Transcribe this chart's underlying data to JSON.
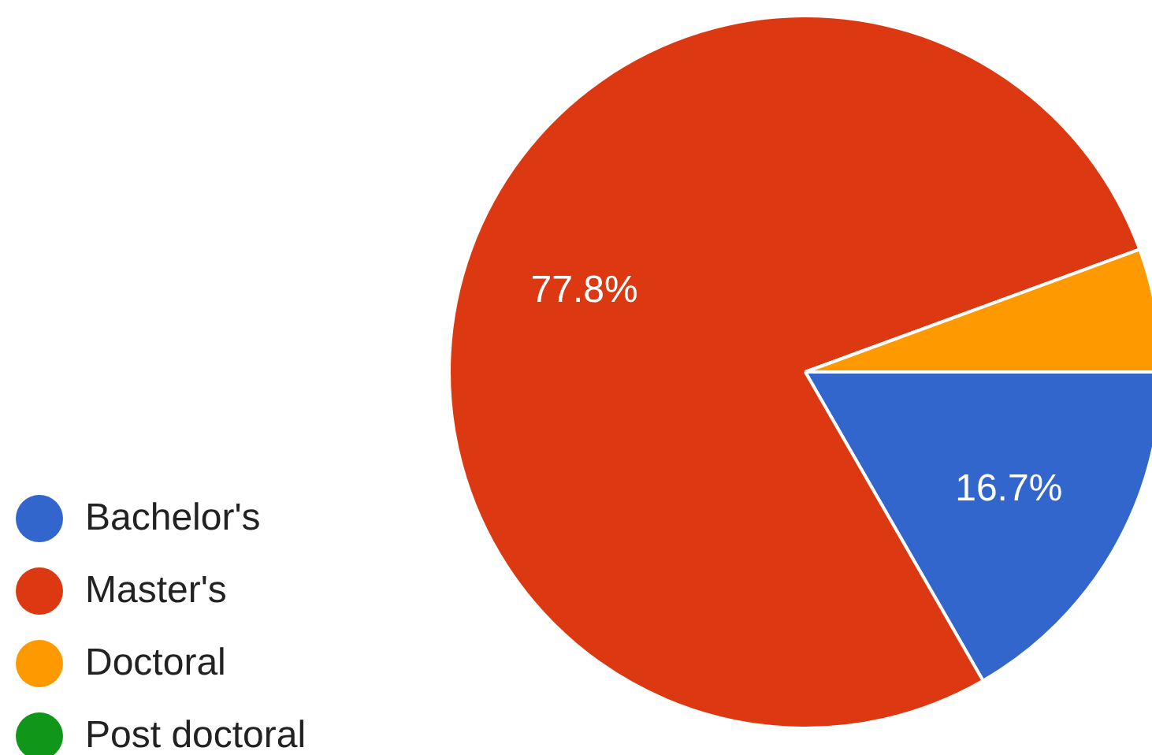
{
  "chart_data": {
    "type": "pie",
    "categories": [
      "Bachelor's",
      "Master's",
      "Doctoral",
      "Post doctoral"
    ],
    "values": [
      16.7,
      77.8,
      5.6,
      0
    ],
    "colors": [
      "#3366cc",
      "#dc3912",
      "#ff9900",
      "#109618"
    ],
    "value_labels": [
      "16.7%",
      "77.8%",
      null,
      null
    ],
    "legend": "bottom left"
  }
}
